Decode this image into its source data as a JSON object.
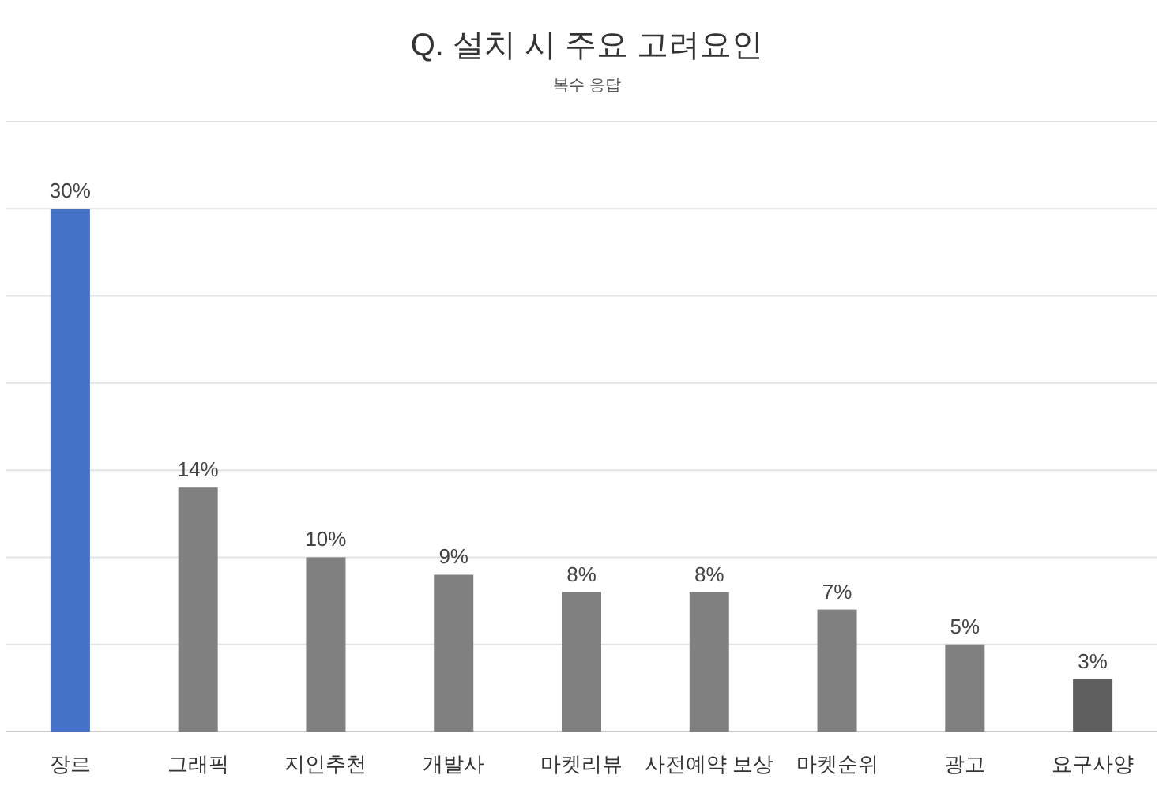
{
  "chart_data": {
    "type": "bar",
    "title": "Q. 설치 시 주요 고려요인",
    "subtitle": "복수 응답",
    "categories": [
      "장르",
      "그래픽",
      "지인추천",
      "개발사",
      "마켓리뷰",
      "사전예약 보상",
      "마켓순위",
      "광고",
      "요구사양"
    ],
    "values": [
      30,
      14,
      10,
      9,
      8,
      8,
      7,
      5,
      3
    ],
    "colors": [
      "#4472c4",
      "#808080",
      "#808080",
      "#808080",
      "#808080",
      "#808080",
      "#808080",
      "#808080",
      "#5f5f5f"
    ],
    "value_labels": [
      "30%",
      "14%",
      "10%",
      "9%",
      "8%",
      "8%",
      "7%",
      "5%",
      "3%"
    ],
    "ylim": [
      0,
      35
    ],
    "yticks": [
      {
        "value": 0,
        "label": null
      },
      {
        "value": 5,
        "label": null
      },
      {
        "value": 10,
        "label": null
      },
      {
        "value": 15,
        "label": null
      },
      {
        "value": 20,
        "label": null
      },
      {
        "value": 25,
        "label": null
      },
      {
        "value": 30,
        "label": null
      },
      {
        "value": 35,
        "label": null
      }
    ],
    "grid": "y",
    "tick_labels": "x"
  }
}
